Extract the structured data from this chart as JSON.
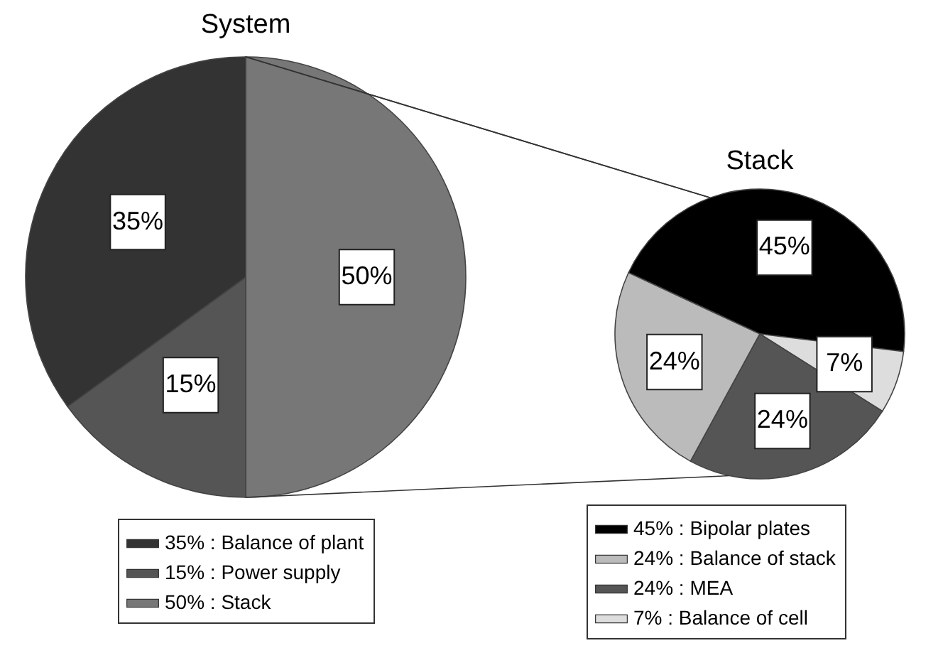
{
  "chart_data": [
    {
      "type": "pie",
      "title": "System",
      "categories": [
        "35% : Balance of plant",
        "15% : Power supply",
        "50% : Stack"
      ],
      "values": [
        35,
        15,
        50
      ],
      "colors": [
        "#333333",
        "#555555",
        "#777777"
      ],
      "value_labels": [
        "35%",
        "15%",
        "50%"
      ],
      "legend": "bottom"
    },
    {
      "type": "pie",
      "title": "Stack",
      "categories": [
        "45% : Bipolar plates",
        "24% : Balance of stack",
        "24% : MEA",
        "7%   : Balance of cell"
      ],
      "values": [
        45,
        24,
        24,
        7
      ],
      "colors": [
        "#000000",
        "#bbbbbb",
        "#555555",
        "#dddddd"
      ],
      "value_labels": [
        "45%",
        "24%",
        "24%",
        "7%"
      ],
      "legend": "bottom"
    }
  ]
}
